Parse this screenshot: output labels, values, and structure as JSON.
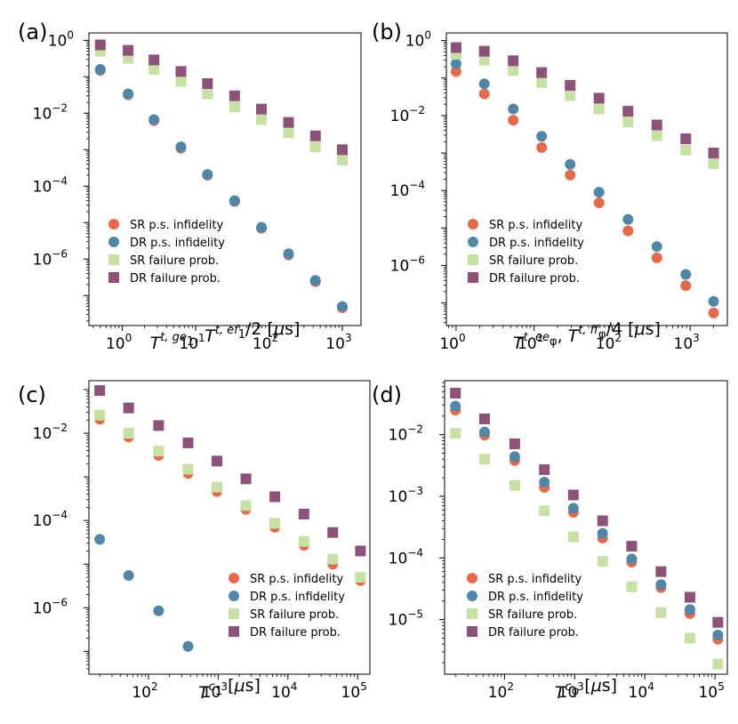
{
  "colors": {
    "sr_ps": "#e8684a",
    "dr_ps": "#4f87a8",
    "sr_fail": "#c7e0a4",
    "dr_fail": "#8c5278"
  },
  "chart_data": [
    {
      "type": "scatter",
      "panel_label": "(a)",
      "xscale": "log",
      "yscale": "log",
      "xlim": [
        0.35,
        1800
      ],
      "ylim": [
        1.5e-08,
        1.6
      ],
      "xticks": [
        1,
        10,
        100,
        1000
      ],
      "xtick_labels": [
        [
          "10",
          "0"
        ],
        [
          "10",
          "1"
        ],
        [
          "10",
          "2"
        ],
        [
          "10",
          "3"
        ]
      ],
      "yticks": [
        1e-06,
        0.0001,
        0.01,
        1
      ],
      "ytick_labels": [
        [
          "10",
          "−6"
        ],
        [
          "10",
          "−4"
        ],
        [
          "10",
          "−2"
        ],
        [
          "10",
          "0"
        ]
      ],
      "xlabel": "T1^{t,ge}, T1^{t,ef}/2  [μs]",
      "legend_position": "lower-left",
      "x": [
        0.5,
        1.2,
        2.7,
        6.3,
        14.5,
        34,
        79,
        185,
        430,
        1000
      ],
      "series": [
        {
          "name": "SR p.s. infidelity",
          "marker": "circle",
          "values": [
            0.15,
            0.032,
            0.0063,
            0.0011,
            0.0002,
            3.8e-05,
            7e-06,
            1.3e-06,
            2.4e-07,
            4.6e-08
          ]
        },
        {
          "name": "DR p.s. infidelity",
          "marker": "circle",
          "values": [
            0.16,
            0.034,
            0.0067,
            0.0012,
            0.00021,
            4e-05,
            7.4e-06,
            1.4e-06,
            2.6e-07,
            5e-08
          ]
        },
        {
          "name": "SR failure prob.",
          "marker": "square",
          "values": [
            0.5,
            0.32,
            0.16,
            0.075,
            0.034,
            0.015,
            0.0067,
            0.0029,
            0.0012,
            0.00052
          ]
        },
        {
          "name": "DR failure prob.",
          "marker": "square",
          "values": [
            0.75,
            0.53,
            0.29,
            0.14,
            0.065,
            0.03,
            0.013,
            0.0056,
            0.0024,
            0.001
          ]
        }
      ]
    },
    {
      "type": "scatter",
      "panel_label": "(b)",
      "xscale": "log",
      "yscale": "log",
      "xlim": [
        0.75,
        3000
      ],
      "ylim": [
        2.5e-08,
        1.6
      ],
      "xticks": [
        1,
        10,
        100,
        1000
      ],
      "xtick_labels": [
        [
          "10",
          "0"
        ],
        [
          "10",
          "1"
        ],
        [
          "10",
          "2"
        ],
        [
          "10",
          "3"
        ]
      ],
      "yticks": [
        1e-06,
        0.0001,
        0.01,
        1
      ],
      "ytick_labels": [
        [
          "10",
          "−6"
        ],
        [
          "10",
          "−4"
        ],
        [
          "10",
          "−2"
        ],
        [
          "10",
          "0"
        ]
      ],
      "xlabel": "Tφ^{t,ee}, Tφ^{t,ff}/4  [μs]",
      "legend_position": "lower-left",
      "x": [
        1,
        2.3,
        5.4,
        12.5,
        29,
        68,
        160,
        375,
        880,
        2000
      ],
      "series": [
        {
          "name": "SR p.s. infidelity",
          "marker": "circle",
          "values": [
            0.15,
            0.038,
            0.0075,
            0.0014,
            0.00026,
            4.7e-05,
            8.4e-06,
            1.6e-06,
            2.9e-07,
            5.4e-08
          ]
        },
        {
          "name": "DR p.s. infidelity",
          "marker": "circle",
          "values": [
            0.24,
            0.07,
            0.015,
            0.0028,
            0.0005,
            9e-05,
            1.7e-05,
            3.2e-06,
            5.8e-07,
            1.1e-07
          ]
        },
        {
          "name": "SR failure prob.",
          "marker": "square",
          "values": [
            0.43,
            0.3,
            0.16,
            0.076,
            0.034,
            0.015,
            0.0067,
            0.0029,
            0.0012,
            0.00052
          ]
        },
        {
          "name": "DR failure prob.",
          "marker": "square",
          "values": [
            0.65,
            0.52,
            0.29,
            0.14,
            0.064,
            0.029,
            0.013,
            0.0056,
            0.0024,
            0.001
          ]
        }
      ]
    },
    {
      "type": "scatter",
      "panel_label": "(c)",
      "xscale": "log",
      "yscale": "log",
      "xlim": [
        14,
        150000
      ],
      "ylim": [
        3e-08,
        0.16
      ],
      "xticks": [
        100,
        1000,
        10000,
        100000
      ],
      "xtick_labels": [
        [
          "10",
          "2"
        ],
        [
          "10",
          "3"
        ],
        [
          "10",
          "4"
        ],
        [
          "10",
          "5"
        ]
      ],
      "yticks": [
        1e-06,
        0.0001,
        0.01
      ],
      "ytick_labels": [
        [
          "10",
          "−6"
        ],
        [
          "10",
          "−4"
        ],
        [
          "10",
          "−2"
        ]
      ],
      "xlabel": "T1^{c}  [μs]",
      "legend_position": "lower-right",
      "x": [
        20,
        52,
        140,
        370,
        960,
        2500,
        6500,
        17000,
        44000,
        110000
      ],
      "series": [
        {
          "name": "SR p.s. infidelity",
          "marker": "circle",
          "values": [
            0.021,
            0.0082,
            0.0031,
            0.0012,
            0.00046,
            0.00018,
            7e-05,
            2.7e-05,
            1e-05,
            4.2e-06
          ]
        },
        {
          "name": "DR p.s. infidelity",
          "marker": "circle",
          "values": [
            3.7e-05,
            5.5e-06,
            8.5e-07,
            1.3e-07
          ]
        },
        {
          "name": "SR failure prob.",
          "marker": "square",
          "values": [
            0.026,
            0.01,
            0.0039,
            0.0015,
            0.00058,
            0.00022,
            8.6e-05,
            3.3e-05,
            1.3e-05,
            5e-06
          ]
        },
        {
          "name": "DR failure prob.",
          "marker": "square",
          "values": [
            0.095,
            0.038,
            0.015,
            0.006,
            0.0023,
            0.0009,
            0.00035,
            0.00014,
            5.3e-05,
            2e-05
          ]
        }
      ]
    },
    {
      "type": "scatter",
      "panel_label": "(d)",
      "xscale": "log",
      "yscale": "log",
      "xlim": [
        14,
        150000
      ],
      "ylim": [
        1.3e-06,
        0.075
      ],
      "xticks": [
        100,
        1000,
        10000,
        100000
      ],
      "xtick_labels": [
        [
          "10",
          "2"
        ],
        [
          "10",
          "3"
        ],
        [
          "10",
          "4"
        ],
        [
          "10",
          "5"
        ]
      ],
      "yticks": [
        1e-05,
        0.0001,
        0.001,
        0.01
      ],
      "ytick_labels": [
        [
          "10",
          "−5"
        ],
        [
          "10",
          "−4"
        ],
        [
          "10",
          "−3"
        ],
        [
          "10",
          "−2"
        ]
      ],
      "xlabel": "Tφ^{c}  [μs]",
      "legend_position": "lower-left",
      "x": [
        20,
        52,
        140,
        370,
        960,
        2500,
        6500,
        17000,
        44000,
        110000
      ],
      "series": [
        {
          "name": "SR p.s. infidelity",
          "marker": "circle",
          "values": [
            0.025,
            0.0098,
            0.0038,
            0.0014,
            0.00055,
            0.00021,
            8.5e-05,
            3.3e-05,
            1.25e-05,
            4.8e-06
          ]
        },
        {
          "name": "DR p.s. infidelity",
          "marker": "circle",
          "values": [
            0.029,
            0.011,
            0.0044,
            0.0017,
            0.00064,
            0.00025,
            9.6e-05,
            3.7e-05,
            1.45e-05,
            5.6e-06
          ]
        },
        {
          "name": "SR failure prob.",
          "marker": "square",
          "values": [
            0.0105,
            0.004,
            0.0015,
            0.00058,
            0.00022,
            8.8e-05,
            3.4e-05,
            1.3e-05,
            5e-06,
            1.9e-06
          ]
        },
        {
          "name": "DR failure prob.",
          "marker": "square",
          "values": [
            0.047,
            0.018,
            0.0071,
            0.0027,
            0.00105,
            0.0004,
            0.000155,
            6e-05,
            2.3e-05,
            9e-06
          ]
        }
      ]
    }
  ]
}
